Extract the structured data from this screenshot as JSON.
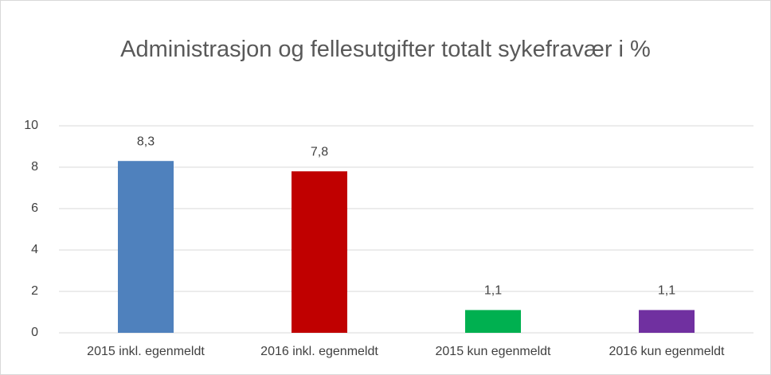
{
  "chart_data": {
    "type": "bar",
    "title": "Administrasjon og fellesutgifter totalt sykefravær i %",
    "categories": [
      "2015 inkl. egenmeldt",
      "2016 inkl. egenmeldt",
      "2015 kun egenmeldt",
      "2016 kun egenmeldt"
    ],
    "values": [
      8.3,
      7.8,
      1.1,
      1.1
    ],
    "value_labels": [
      "8,3",
      "7,8",
      "1,1",
      "1,1"
    ],
    "colors": [
      "#4f81bd",
      "#c00000",
      "#00b050",
      "#7030a0"
    ],
    "ylim": [
      0,
      10
    ],
    "yticks": [
      0,
      2,
      4,
      6,
      8,
      10
    ],
    "grid": true
  }
}
